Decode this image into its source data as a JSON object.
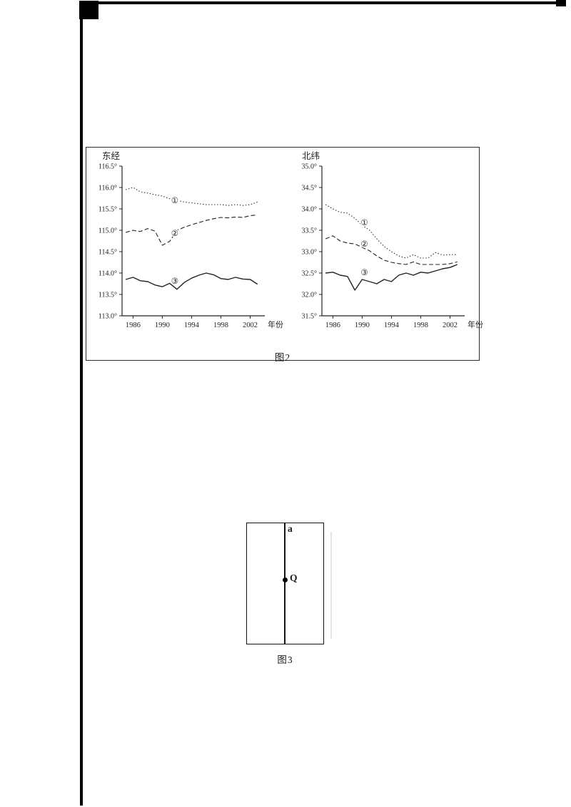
{
  "page": {
    "background": "#ffffff",
    "ink": "#222222"
  },
  "figure2": {
    "caption": "图2"
  },
  "figure3": {
    "caption": "图3",
    "line_label": "a",
    "point_label": "Q"
  },
  "chart_data": [
    {
      "type": "line",
      "title": "东经",
      "xlabel": "年份",
      "ylabel": "",
      "ylim": [
        113.0,
        116.5
      ],
      "xlim": [
        1984.5,
        2004
      ],
      "grid": false,
      "legend": "none",
      "yticks": {
        "values": [
          113.0,
          113.5,
          114.0,
          114.5,
          115.0,
          115.5,
          116.0,
          116.5
        ],
        "labels": [
          "113.0°",
          "113.5°",
          "114.0°",
          "114.5°",
          "115.0°",
          "115.5°",
          "116.0°",
          "116.5°"
        ]
      },
      "xticks": {
        "values": [
          1986,
          1990,
          1994,
          1998,
          2002
        ],
        "labels": [
          "1986",
          "1990",
          "1994",
          "1998",
          "2002"
        ]
      },
      "x": [
        1985,
        1986,
        1987,
        1988,
        1989,
        1990,
        1991,
        1992,
        1993,
        1994,
        1995,
        1996,
        1997,
        1998,
        1999,
        2000,
        2001,
        2002,
        2003
      ],
      "series": [
        {
          "name": "①",
          "style": "dotted",
          "values": [
            115.95,
            116.0,
            115.9,
            115.87,
            115.83,
            115.8,
            115.74,
            115.7,
            115.66,
            115.64,
            115.62,
            115.6,
            115.6,
            115.6,
            115.58,
            115.6,
            115.58,
            115.6,
            115.66
          ]
        },
        {
          "name": "②",
          "style": "dashed",
          "values": [
            114.95,
            115.0,
            114.97,
            115.04,
            114.98,
            114.65,
            114.74,
            115.0,
            115.07,
            115.13,
            115.18,
            115.23,
            115.27,
            115.3,
            115.29,
            115.31,
            115.3,
            115.34,
            115.36
          ]
        },
        {
          "name": "③",
          "style": "solid",
          "values": [
            113.85,
            113.9,
            113.82,
            113.8,
            113.72,
            113.68,
            113.76,
            113.62,
            113.78,
            113.88,
            113.95,
            114.0,
            113.96,
            113.87,
            113.85,
            113.9,
            113.86,
            113.85,
            113.74
          ]
        }
      ],
      "annotations": [
        {
          "text": "①",
          "x": 1991.7,
          "y": 115.7
        },
        {
          "text": "②",
          "x": 1991.7,
          "y": 114.93
        },
        {
          "text": "③",
          "x": 1991.7,
          "y": 113.82
        }
      ]
    },
    {
      "type": "line",
      "title": "北纬",
      "xlabel": "年份",
      "ylabel": "",
      "ylim": [
        31.5,
        35.0
      ],
      "xlim": [
        1984.5,
        2004
      ],
      "grid": false,
      "legend": "none",
      "yticks": {
        "values": [
          31.5,
          32.0,
          32.5,
          33.0,
          33.5,
          34.0,
          34.5,
          35.0
        ],
        "labels": [
          "31.5°",
          "32.0°",
          "32.5°",
          "33.0°",
          "33.5°",
          "34.0°",
          "34.5°",
          "35.0°"
        ]
      },
      "xticks": {
        "values": [
          1986,
          1990,
          1994,
          1998,
          2002
        ],
        "labels": [
          "1986",
          "1990",
          "1994",
          "1998",
          "2002"
        ]
      },
      "x": [
        1985,
        1986,
        1987,
        1988,
        1989,
        1990,
        1991,
        1992,
        1993,
        1994,
        1995,
        1996,
        1997,
        1998,
        1999,
        2000,
        2001,
        2002,
        2003
      ],
      "series": [
        {
          "name": "①",
          "style": "dotted",
          "values": [
            34.1,
            34.0,
            33.92,
            33.9,
            33.78,
            33.62,
            33.5,
            33.3,
            33.12,
            33.0,
            32.9,
            32.85,
            32.93,
            32.85,
            32.85,
            32.98,
            32.92,
            32.93,
            32.93
          ]
        },
        {
          "name": "②",
          "style": "dashed",
          "values": [
            33.3,
            33.37,
            33.25,
            33.2,
            33.18,
            33.1,
            33.02,
            32.9,
            32.8,
            32.75,
            32.72,
            32.7,
            32.76,
            32.7,
            32.7,
            32.7,
            32.7,
            32.72,
            32.76
          ]
        },
        {
          "name": "③",
          "style": "solid",
          "values": [
            32.5,
            32.52,
            32.45,
            32.42,
            32.1,
            32.35,
            32.3,
            32.25,
            32.35,
            32.3,
            32.45,
            32.5,
            32.45,
            32.52,
            32.5,
            32.55,
            32.6,
            32.63,
            32.7
          ]
        }
      ],
      "annotations": [
        {
          "text": "①",
          "x": 1990.3,
          "y": 33.68
        },
        {
          "text": "②",
          "x": 1990.3,
          "y": 33.18
        },
        {
          "text": "③",
          "x": 1990.3,
          "y": 32.52
        }
      ]
    }
  ]
}
